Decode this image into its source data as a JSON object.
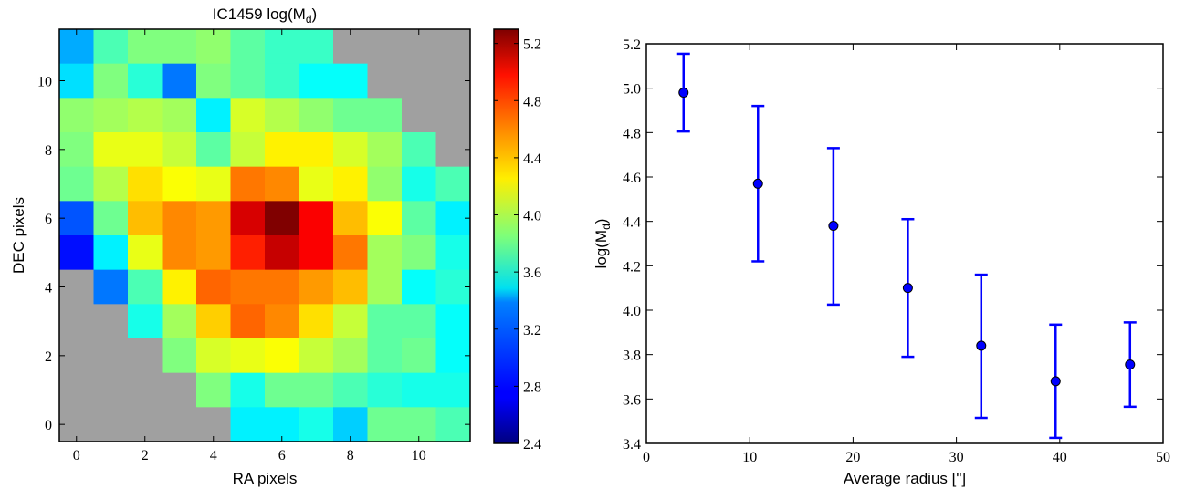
{
  "chart_data": [
    {
      "type": "heatmap",
      "title_prefix": "IC1459 log(M",
      "title_sub": "d",
      "title_suffix": ")",
      "xlabel": "RA pixels",
      "ylabel": "DEC pixels",
      "xticks": [
        0,
        2,
        4,
        6,
        8,
        10
      ],
      "yticks": [
        0,
        2,
        4,
        6,
        8,
        10
      ],
      "xlim": [
        -0.5,
        11.5
      ],
      "ylim": [
        -0.5,
        11.5
      ],
      "colorbar": {
        "colormap": "jet",
        "range": [
          2.4,
          5.3
        ],
        "ticks": [
          "2.4",
          "2.8",
          "3.2",
          "3.6",
          "4.0",
          "4.4",
          "4.8",
          "5.2"
        ]
      },
      "masked_color": "#a0a0a0",
      "grid_note": "rows listed from y=11 (top) down to y=0; null = masked",
      "z": [
        [
          3.25,
          3.7,
          3.85,
          3.85,
          3.9,
          3.75,
          3.65,
          3.65,
          null,
          null,
          null,
          null
        ],
        [
          3.4,
          3.85,
          3.6,
          3.1,
          3.85,
          3.75,
          3.65,
          3.5,
          3.5,
          null,
          null,
          null
        ],
        [
          3.9,
          3.95,
          4.0,
          3.95,
          3.45,
          4.1,
          4.0,
          3.9,
          3.8,
          3.8,
          null,
          null
        ],
        [
          3.85,
          4.15,
          4.15,
          4.05,
          3.75,
          4.05,
          4.25,
          4.25,
          4.1,
          3.95,
          3.7,
          null
        ],
        [
          3.8,
          4.0,
          4.3,
          4.2,
          4.15,
          4.6,
          4.55,
          4.15,
          4.25,
          3.9,
          3.55,
          3.7
        ],
        [
          3.0,
          3.8,
          4.4,
          4.55,
          4.5,
          5.05,
          5.3,
          4.95,
          4.4,
          4.2,
          3.75,
          3.45
        ],
        [
          2.8,
          3.45,
          4.15,
          4.55,
          4.5,
          4.85,
          5.1,
          4.95,
          4.6,
          3.95,
          3.85,
          3.55
        ],
        [
          null,
          3.1,
          3.7,
          4.25,
          4.65,
          4.6,
          4.6,
          4.5,
          4.4,
          3.95,
          3.5,
          3.6
        ],
        [
          null,
          null,
          3.55,
          3.95,
          4.35,
          4.65,
          4.55,
          4.3,
          4.05,
          3.75,
          3.75,
          3.5
        ],
        [
          null,
          null,
          null,
          3.85,
          4.1,
          4.15,
          4.2,
          4.05,
          3.95,
          3.75,
          3.8,
          3.5
        ],
        [
          null,
          null,
          null,
          null,
          3.85,
          3.55,
          3.8,
          3.8,
          3.7,
          3.6,
          3.55,
          3.55
        ],
        [
          null,
          null,
          null,
          null,
          null,
          3.45,
          3.45,
          3.55,
          3.35,
          3.8,
          3.8,
          3.7
        ]
      ]
    },
    {
      "type": "scatter",
      "errorbars": true,
      "xlabel": "Average radius [\"]",
      "ylabel_prefix": "log(M",
      "ylabel_sub": "d",
      "ylabel_suffix": ")",
      "xlim": [
        0,
        50
      ],
      "ylim": [
        3.4,
        5.2
      ],
      "xticks": [
        "0",
        "10",
        "20",
        "30",
        "40",
        "50"
      ],
      "yticks": [
        "3.4",
        "3.6",
        "3.8",
        "4.0",
        "4.2",
        "4.4",
        "4.6",
        "4.8",
        "5.0",
        "5.2"
      ],
      "color": "#0000ff",
      "series": [
        {
          "x": [
            3.6,
            10.8,
            18.1,
            25.3,
            32.4,
            39.6,
            46.8
          ],
          "y": [
            4.98,
            4.57,
            4.38,
            4.1,
            3.84,
            3.68,
            3.755
          ],
          "yerr_low": [
            0.175,
            0.35,
            0.355,
            0.31,
            0.325,
            0.255,
            0.19
          ],
          "yerr_high": [
            0.175,
            0.35,
            0.35,
            0.31,
            0.32,
            0.255,
            0.19
          ]
        }
      ]
    }
  ]
}
